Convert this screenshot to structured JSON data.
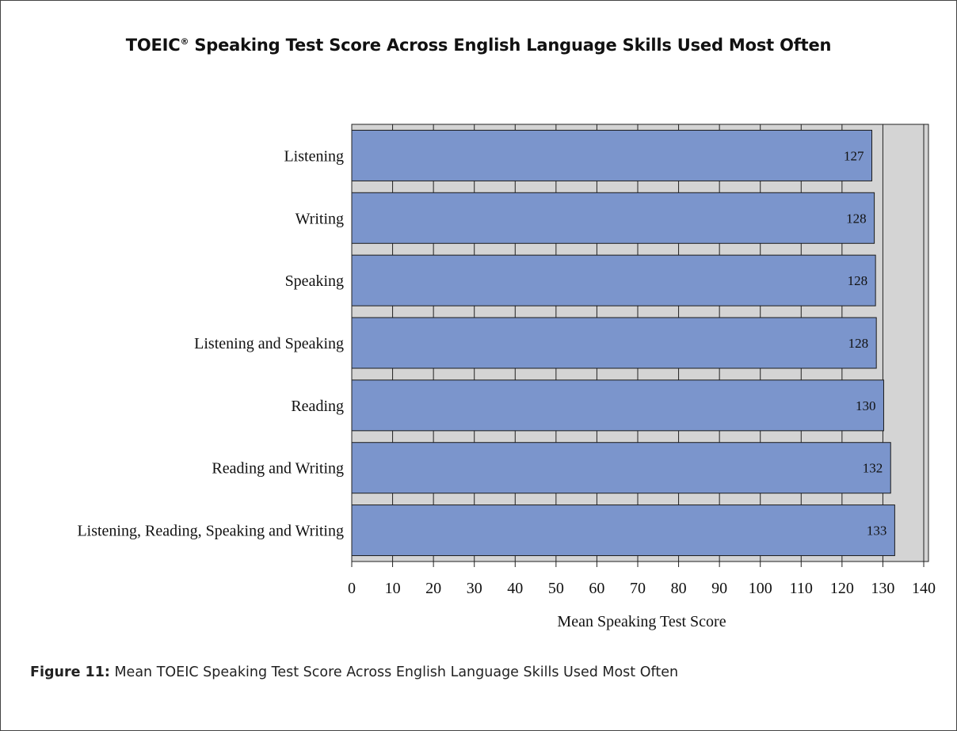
{
  "page": {
    "title_main": "TOEIC",
    "title_mark": "®",
    "title_rest": " Speaking Test Score Across English Language Skills Used Most Often",
    "caption_figure": "Figure 11:",
    "caption_text": " Mean TOEIC Speaking Test Score Across English Language Skills Used Most Often"
  },
  "colors": {
    "bar_fill": "#7b95cc",
    "plot_bg": "#d4d4d4",
    "grid": "#222222"
  },
  "chart_data": {
    "type": "bar",
    "orientation": "horizontal",
    "title": "TOEIC® Speaking Test Score Across English Language Skills Used Most Often",
    "xlabel": "Mean Speaking Test Score",
    "ylabel": "",
    "xlim": [
      0,
      140
    ],
    "xticks": [
      0,
      10,
      20,
      30,
      40,
      50,
      60,
      70,
      80,
      90,
      100,
      110,
      120,
      130,
      140
    ],
    "grid": true,
    "categories": [
      "Listening",
      "Writing",
      "Speaking",
      "Listening and Speaking",
      "Reading",
      "Reading and Writing",
      "Listening, Reading, Speaking and Writing"
    ],
    "values": [
      127.3,
      127.9,
      128.2,
      128.4,
      130.2,
      131.9,
      132.9
    ],
    "labels": [
      "127",
      "128",
      "128",
      "128",
      "130",
      "132",
      "133"
    ]
  }
}
